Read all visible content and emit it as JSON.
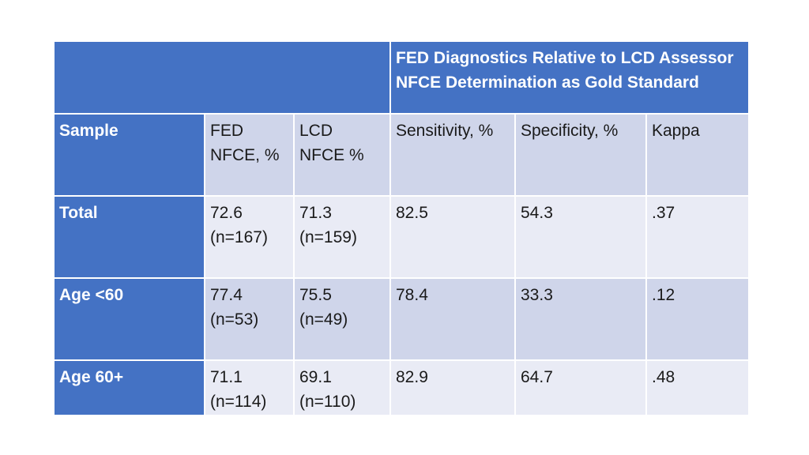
{
  "table": {
    "title_lines": [
      "FED Diagnostics Relative to LCD Assessor",
      "NFCE Determination as Gold Standard"
    ],
    "headers": {
      "sample": "Sample",
      "fed_nfce": [
        "FED",
        "NFCE, %"
      ],
      "lcd_nfce": [
        "LCD",
        "NFCE %"
      ],
      "sensitivity": "Sensitivity, %",
      "specificity": "Specificity, %",
      "kappa": "Kappa"
    },
    "rows": [
      {
        "label": "Total",
        "fed": [
          "72.6",
          "(n=167)"
        ],
        "lcd": [
          "71.3",
          "(n=159)"
        ],
        "sensitivity": "82.5",
        "specificity": "54.3",
        "kappa": ".37"
      },
      {
        "label": "Age <60",
        "fed": [
          "77.4",
          "(n=53)"
        ],
        "lcd": [
          "75.5",
          "(n=49)"
        ],
        "sensitivity": "78.4",
        "specificity": "33.3",
        "kappa": ".12"
      },
      {
        "label": "Age 60+",
        "fed": [
          "71.1",
          "(n=114)"
        ],
        "lcd": [
          "69.1",
          "(n=110)"
        ],
        "sensitivity": "82.9",
        "specificity": "64.7",
        "kappa": ".48"
      }
    ]
  },
  "colors": {
    "header_blue": "#4472c4",
    "band_dark": "#cfd5ea",
    "band_light": "#e9ebf5"
  }
}
